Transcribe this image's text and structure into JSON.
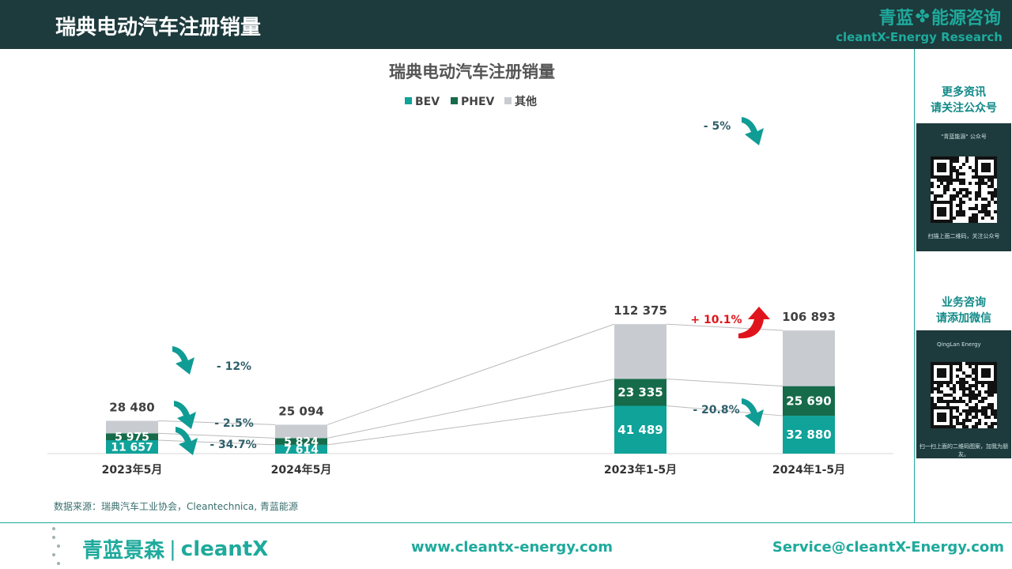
{
  "header": {
    "title": "瑞典电动汽车注册销量",
    "brand_cn": "青蓝",
    "brand_cn_suffix": "能源咨询",
    "brand_en": "cleantX-Energy Research",
    "brand_icon": "clover-icon"
  },
  "colors": {
    "BEV": "#10a39a",
    "PHEV": "#166b4a",
    "other": "#c8ccd1",
    "accent": "#1eaa9c",
    "header_bg": "#1d3a3c",
    "arrow": "#0f9c94",
    "up_arrow": "#e0141c"
  },
  "chart_data": {
    "type": "bar",
    "stacked": true,
    "title": "瑞典电动汽车注册销量",
    "categories": [
      "2023年5月",
      "2024年5月",
      "2023年1-5月",
      "2024年1-5月"
    ],
    "series": [
      {
        "name": "BEV",
        "values": [
          11657,
          7614,
          41489,
          32880
        ]
      },
      {
        "name": "PHEV",
        "values": [
          5975,
          5824,
          23335,
          25690
        ]
      },
      {
        "name": "其他",
        "values": [
          10848,
          11656,
          47551,
          48323
        ]
      }
    ],
    "totals": [
      28480,
      25094,
      112375,
      106893
    ],
    "total_labels": [
      "28 480",
      "25 094",
      "112 375",
      "106 893"
    ],
    "value_labels": {
      "BEV": [
        "11 657",
        "7 614",
        "41 489",
        "32 880"
      ],
      "PHEV": [
        "5 975",
        "5 824",
        "23 335",
        "25 690"
      ]
    },
    "legend_position": "top",
    "grid": false,
    "annotations": [
      {
        "text": "- 12%",
        "direction": "down"
      },
      {
        "text": "- 2.5%",
        "direction": "down"
      },
      {
        "text": "- 34.7%",
        "direction": "down"
      },
      {
        "text": "- 5%",
        "direction": "down"
      },
      {
        "text": "+ 10.1%",
        "direction": "up"
      },
      {
        "text": "- 20.8%",
        "direction": "down"
      }
    ]
  },
  "right_panel": {
    "section1_line1": "更多资讯",
    "section1_line2": "请关注公众号",
    "qr1_title": "\"青蓝能源\" 公众号",
    "qr1_caption": "扫描上面二维码，关注公众号",
    "section2_line1": "业务咨询",
    "section2_line2": "请添加微信",
    "qr2_title": "QingLan Energy",
    "qr2_caption": "扫一扫上面的二维码图案，加我为朋友。"
  },
  "source": "数据来源：瑞典汽车工业协会，Cleantechnica, 青蓝能源",
  "footer": {
    "logo_cn": "青蓝景森",
    "logo_en": "cleantX",
    "url": "www.cleantx-energy.com",
    "email": "Service@cleantX-Energy.com"
  }
}
